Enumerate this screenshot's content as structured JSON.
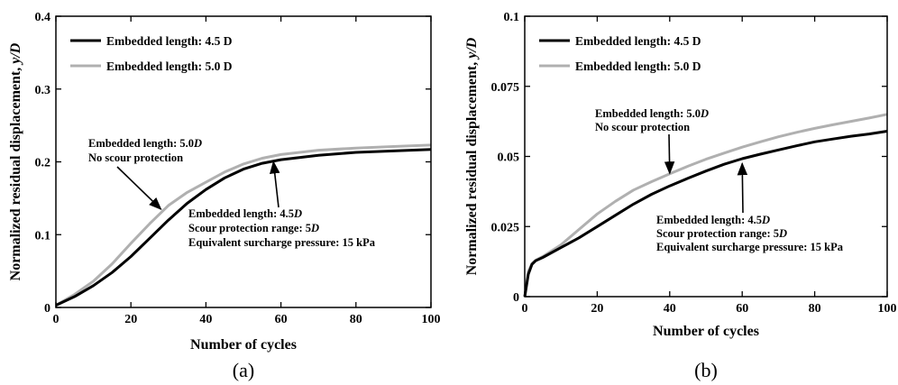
{
  "chart_data": [
    {
      "type": "line",
      "panel": "(a)",
      "xlabel": "Number of cycles",
      "ylabel_main": "Normalized residual displacement, ",
      "ylabel_var": "y/D",
      "xlim": [
        0,
        100
      ],
      "ylim": [
        0,
        0.4
      ],
      "x_ticks": [
        0,
        20,
        40,
        60,
        80,
        100
      ],
      "y_ticks": [
        0,
        0.1,
        0.2,
        0.3,
        0.4
      ],
      "y_tick_labels": [
        "0",
        "0.1",
        "0.2",
        "0.3",
        "0.4"
      ],
      "grid": false,
      "legend_position": "top-left",
      "series": [
        {
          "name": "Embedded length: 4.5 D",
          "color": "#000000",
          "x": [
            0,
            5,
            10,
            15,
            20,
            25,
            30,
            35,
            40,
            45,
            50,
            55,
            60,
            70,
            80,
            90,
            100
          ],
          "y": [
            0.003,
            0.015,
            0.03,
            0.048,
            0.07,
            0.095,
            0.12,
            0.143,
            0.162,
            0.178,
            0.19,
            0.198,
            0.203,
            0.209,
            0.213,
            0.215,
            0.217
          ]
        },
        {
          "name": "Embedded length: 5.0 D",
          "color": "#b0b0b0",
          "x": [
            0,
            5,
            10,
            15,
            20,
            25,
            30,
            35,
            40,
            45,
            50,
            55,
            60,
            70,
            80,
            90,
            100
          ],
          "y": [
            0.003,
            0.018,
            0.036,
            0.06,
            0.088,
            0.115,
            0.14,
            0.158,
            0.172,
            0.186,
            0.197,
            0.205,
            0.21,
            0.216,
            0.219,
            0.221,
            0.223
          ]
        }
      ],
      "annotations": [
        {
          "lines": [
            {
              "text": "Embedded length: 5.0",
              "italic": "D"
            },
            {
              "text": "No scour protection",
              "italic": ""
            }
          ],
          "arrow_to": [
            28,
            0.135
          ]
        },
        {
          "lines": [
            {
              "text": "Embedded length: 4.5",
              "italic": "D"
            },
            {
              "text": "Scour protection range: 5",
              "italic": "D"
            },
            {
              "text": "Equivalent surcharge pressure: 15 kPa",
              "italic": ""
            }
          ],
          "arrow_to": [
            58,
            0.2
          ]
        }
      ]
    },
    {
      "type": "line",
      "panel": "(b)",
      "xlabel": "Number of cycles",
      "ylabel_main": "Normalized residual displacement, ",
      "ylabel_var": "y/D",
      "xlim": [
        0,
        100
      ],
      "ylim": [
        0,
        0.1
      ],
      "x_ticks": [
        0,
        20,
        40,
        60,
        80,
        100
      ],
      "y_ticks": [
        0,
        0.025,
        0.05,
        0.075,
        0.1
      ],
      "y_tick_labels": [
        "0",
        "0.025",
        "0.05",
        "0.075",
        "0.1"
      ],
      "grid": false,
      "legend_position": "top-left",
      "series": [
        {
          "name": "Embedded length: 4.5 D",
          "color": "#000000",
          "x": [
            0,
            1,
            2,
            3,
            5,
            10,
            15,
            20,
            25,
            30,
            35,
            40,
            45,
            50,
            55,
            60,
            65,
            70,
            75,
            80,
            85,
            90,
            95,
            100
          ],
          "y": [
            0,
            0.008,
            0.0115,
            0.0128,
            0.014,
            0.0175,
            0.021,
            0.025,
            0.029,
            0.033,
            0.0365,
            0.0395,
            0.0422,
            0.0448,
            0.0472,
            0.0492,
            0.0508,
            0.0523,
            0.0538,
            0.0552,
            0.0562,
            0.0572,
            0.058,
            0.059
          ]
        },
        {
          "name": "Embedded length: 5.0 D",
          "color": "#b0b0b0",
          "x": [
            0,
            1,
            2,
            3,
            5,
            10,
            15,
            20,
            25,
            30,
            35,
            40,
            45,
            50,
            55,
            60,
            65,
            70,
            75,
            80,
            85,
            90,
            95,
            100
          ],
          "y": [
            0,
            0.009,
            0.0118,
            0.013,
            0.0143,
            0.0185,
            0.024,
            0.0295,
            0.034,
            0.038,
            0.041,
            0.0438,
            0.0465,
            0.049,
            0.0512,
            0.0533,
            0.0552,
            0.057,
            0.0586,
            0.06,
            0.0613,
            0.0625,
            0.0637,
            0.065
          ]
        }
      ],
      "annotations": [
        {
          "lines": [
            {
              "text": "Embedded length: 5.0",
              "italic": "D"
            },
            {
              "text": "No scour protection",
              "italic": ""
            }
          ],
          "arrow_to": [
            40,
            0.044
          ]
        },
        {
          "lines": [
            {
              "text": "Embedded length: 4.5",
              "italic": "D"
            },
            {
              "text": "Scour protection range: 5",
              "italic": "D"
            },
            {
              "text": "Equivalent surcharge pressure: 15 kPa",
              "italic": ""
            }
          ],
          "arrow_to": [
            60,
            0.0475
          ]
        }
      ]
    }
  ]
}
